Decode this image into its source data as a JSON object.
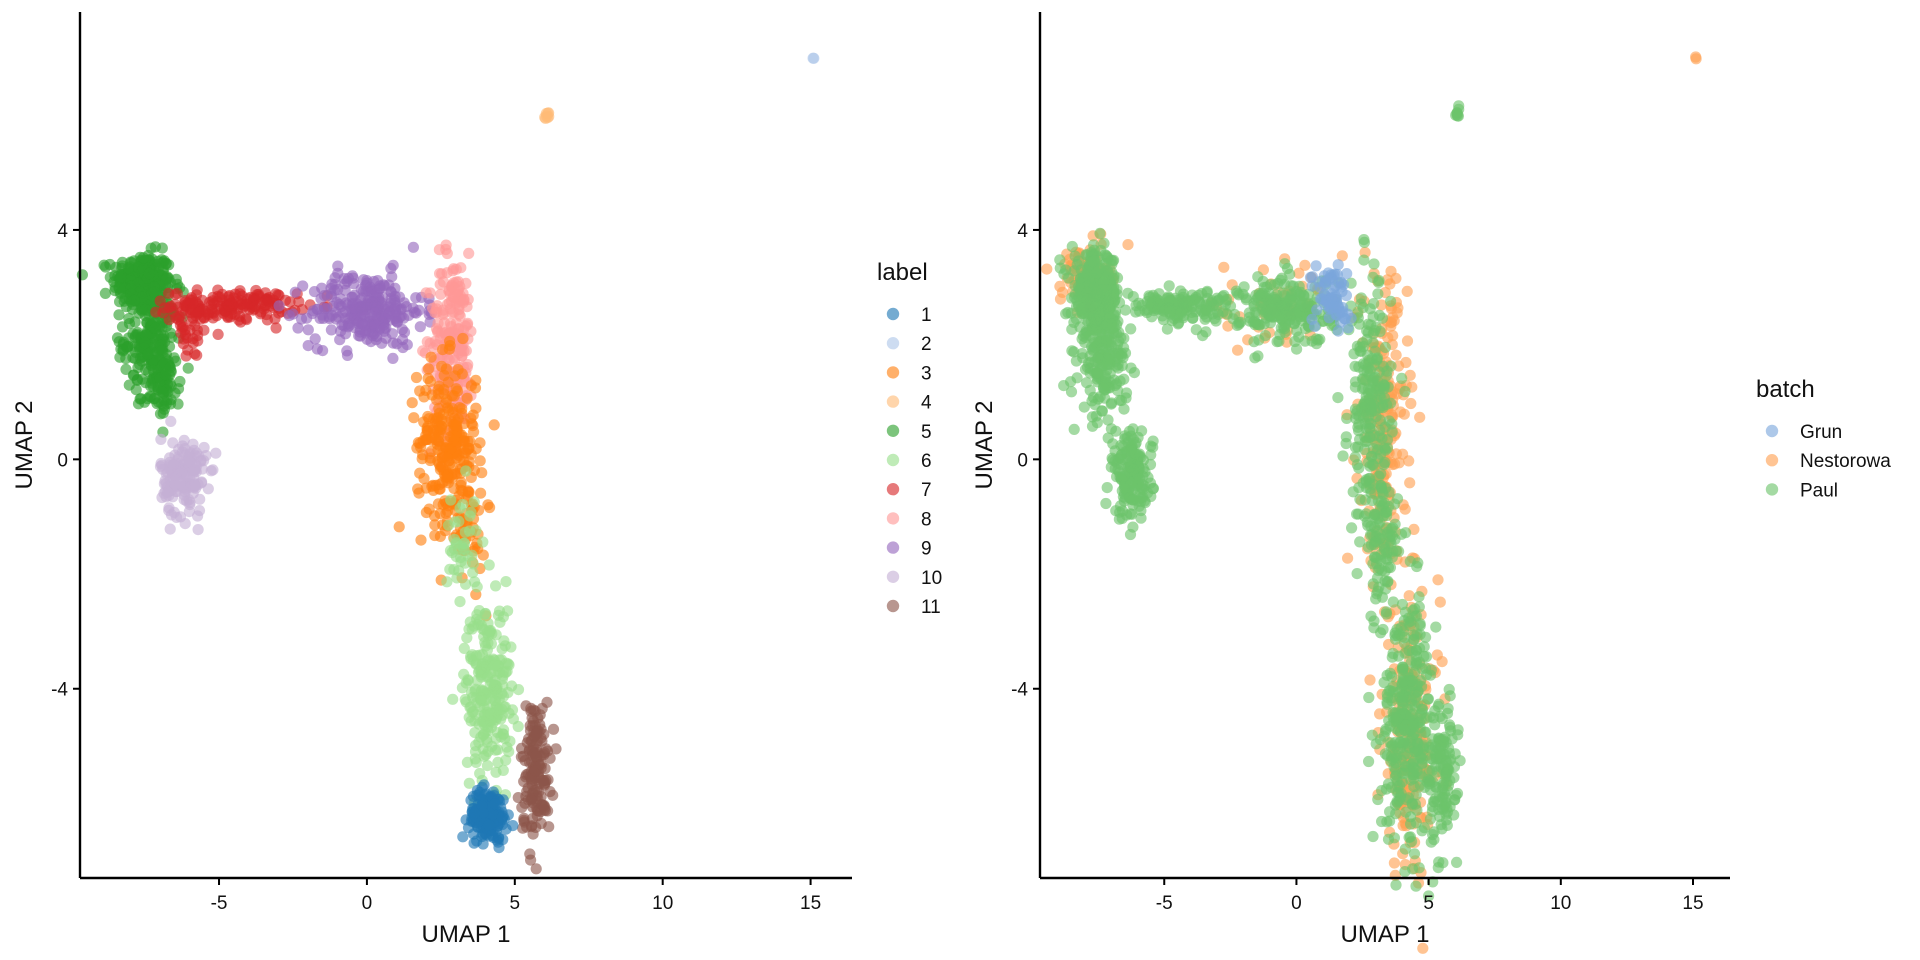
{
  "colors": {
    "label": {
      "1": "#1f77b4",
      "2": "#aec7e8",
      "3": "#ff7f0e",
      "4": "#ffbb78",
      "5": "#2ca02c",
      "6": "#98df8a",
      "7": "#d62728",
      "8": "#ff9896",
      "9": "#9467bd",
      "10": "#c5b0d5",
      "11": "#8c564b"
    },
    "batch": {
      "Grun": "#7aa6db",
      "Nestorowa": "#ff9f50",
      "Paul": "#6cc46a"
    }
  },
  "chart_data": [
    {
      "type": "scatter",
      "xlabel": "UMAP 1",
      "ylabel": "UMAP 2",
      "xlim": [
        -9.7,
        16.4
      ],
      "ylim": [
        -7.3,
        7.8
      ],
      "xticks": [
        -5,
        0,
        5,
        10,
        15
      ],
      "yticks": [
        -4,
        0,
        4
      ],
      "grid": false,
      "legend": {
        "title": "label",
        "placement": "right",
        "entries": [
          "1",
          "2",
          "3",
          "4",
          "5",
          "6",
          "7",
          "8",
          "9",
          "10",
          "11"
        ]
      },
      "clusters": [
        {
          "group": "5",
          "cx": -7.6,
          "cy": 3.1,
          "sx": 0.5,
          "sy": 0.25,
          "n": 260
        },
        {
          "group": "5",
          "cx": -7.3,
          "cy": 2.1,
          "sx": 0.45,
          "sy": 0.45,
          "n": 200
        },
        {
          "group": "5",
          "cx": -6.9,
          "cy": 1.3,
          "sx": 0.3,
          "sy": 0.3,
          "n": 70
        },
        {
          "group": "7",
          "cx": -4.5,
          "cy": 2.68,
          "sx": 1.05,
          "sy": 0.13,
          "n": 160
        },
        {
          "group": "7",
          "cx": -6.0,
          "cy": 2.3,
          "sx": 0.35,
          "sy": 0.3,
          "n": 40
        },
        {
          "group": "9",
          "cx": 0.0,
          "cy": 2.6,
          "sx": 0.95,
          "sy": 0.32,
          "n": 260
        },
        {
          "group": "8",
          "cx": 2.9,
          "cy": 2.0,
          "sx": 0.38,
          "sy": 0.8,
          "n": 230
        },
        {
          "group": "3",
          "cx": 2.7,
          "cy": 0.3,
          "sx": 0.5,
          "sy": 0.7,
          "n": 230
        },
        {
          "group": "3",
          "cx": 3.4,
          "cy": -1.0,
          "sx": 0.3,
          "sy": 0.6,
          "n": 60
        },
        {
          "group": "6",
          "cx": 3.2,
          "cy": -1.4,
          "sx": 0.25,
          "sy": 0.5,
          "n": 40
        },
        {
          "group": "6",
          "cx": 4.1,
          "cy": -4.0,
          "sx": 0.4,
          "sy": 0.75,
          "n": 240
        },
        {
          "group": "10",
          "cx": -6.2,
          "cy": -0.3,
          "sx": 0.38,
          "sy": 0.35,
          "n": 160
        },
        {
          "group": "11",
          "cx": 5.7,
          "cy": -5.4,
          "sx": 0.25,
          "sy": 0.6,
          "n": 150
        },
        {
          "group": "1",
          "cx": 4.1,
          "cy": -6.2,
          "sx": 0.32,
          "sy": 0.22,
          "n": 180
        },
        {
          "group": "4",
          "cx": 6.1,
          "cy": 6.0,
          "sx": 0.05,
          "sy": 0.05,
          "n": 8
        },
        {
          "group": "2",
          "cx": 15.1,
          "cy": 7.0,
          "sx": 0.01,
          "sy": 0.01,
          "n": 2
        }
      ]
    },
    {
      "type": "scatter",
      "xlabel": "UMAP 1",
      "ylabel": "UMAP 2",
      "xlim": [
        -9.7,
        16.4
      ],
      "ylim": [
        -7.3,
        7.8
      ],
      "xticks": [
        -5,
        0,
        5,
        10,
        15
      ],
      "yticks": [
        -4,
        0,
        4
      ],
      "grid": false,
      "legend": {
        "title": "batch",
        "placement": "right",
        "entries": [
          "Grun",
          "Nestorowa",
          "Paul"
        ]
      },
      "clusters": [
        {
          "group": "Nestorowa",
          "cx": -8.0,
          "cy": 3.2,
          "sx": 0.45,
          "sy": 0.25,
          "n": 90
        },
        {
          "group": "Nestorowa",
          "cx": 3.3,
          "cy": 0.5,
          "sx": 0.45,
          "sy": 1.3,
          "n": 220
        },
        {
          "group": "Nestorowa",
          "cx": 4.3,
          "cy": -4.8,
          "sx": 0.55,
          "sy": 1.2,
          "n": 200
        },
        {
          "group": "Nestorowa",
          "cx": -1.0,
          "cy": 2.7,
          "sx": 1.5,
          "sy": 0.3,
          "n": 50
        },
        {
          "group": "Nestorowa",
          "cx": 15.1,
          "cy": 7.0,
          "sx": 0.01,
          "sy": 0.01,
          "n": 2
        },
        {
          "group": "Paul",
          "cx": -7.6,
          "cy": 2.9,
          "sx": 0.45,
          "sy": 0.35,
          "n": 260
        },
        {
          "group": "Paul",
          "cx": -7.3,
          "cy": 1.8,
          "sx": 0.45,
          "sy": 0.55,
          "n": 200
        },
        {
          "group": "Paul",
          "cx": -4.5,
          "cy": 2.68,
          "sx": 1.05,
          "sy": 0.13,
          "n": 160
        },
        {
          "group": "Paul",
          "cx": -0.3,
          "cy": 2.6,
          "sx": 0.9,
          "sy": 0.3,
          "n": 220
        },
        {
          "group": "Paul",
          "cx": -6.2,
          "cy": -0.3,
          "sx": 0.38,
          "sy": 0.38,
          "n": 160
        },
        {
          "group": "Paul",
          "cx": 2.8,
          "cy": 0.8,
          "sx": 0.4,
          "sy": 1.1,
          "n": 220
        },
        {
          "group": "Paul",
          "cx": 3.3,
          "cy": -1.6,
          "sx": 0.28,
          "sy": 0.6,
          "n": 80
        },
        {
          "group": "Paul",
          "cx": 4.2,
          "cy": -4.5,
          "sx": 0.5,
          "sy": 1.05,
          "n": 320
        },
        {
          "group": "Paul",
          "cx": 5.5,
          "cy": -5.4,
          "sx": 0.28,
          "sy": 0.6,
          "n": 120
        },
        {
          "group": "Paul",
          "cx": 6.1,
          "cy": 6.0,
          "sx": 0.05,
          "sy": 0.05,
          "n": 8
        },
        {
          "group": "Grun",
          "cx": 1.3,
          "cy": 2.9,
          "sx": 0.35,
          "sy": 0.25,
          "n": 60
        },
        {
          "group": "Grun",
          "cx": 1.8,
          "cy": 2.4,
          "sx": 0.2,
          "sy": 0.2,
          "n": 12
        }
      ]
    }
  ]
}
